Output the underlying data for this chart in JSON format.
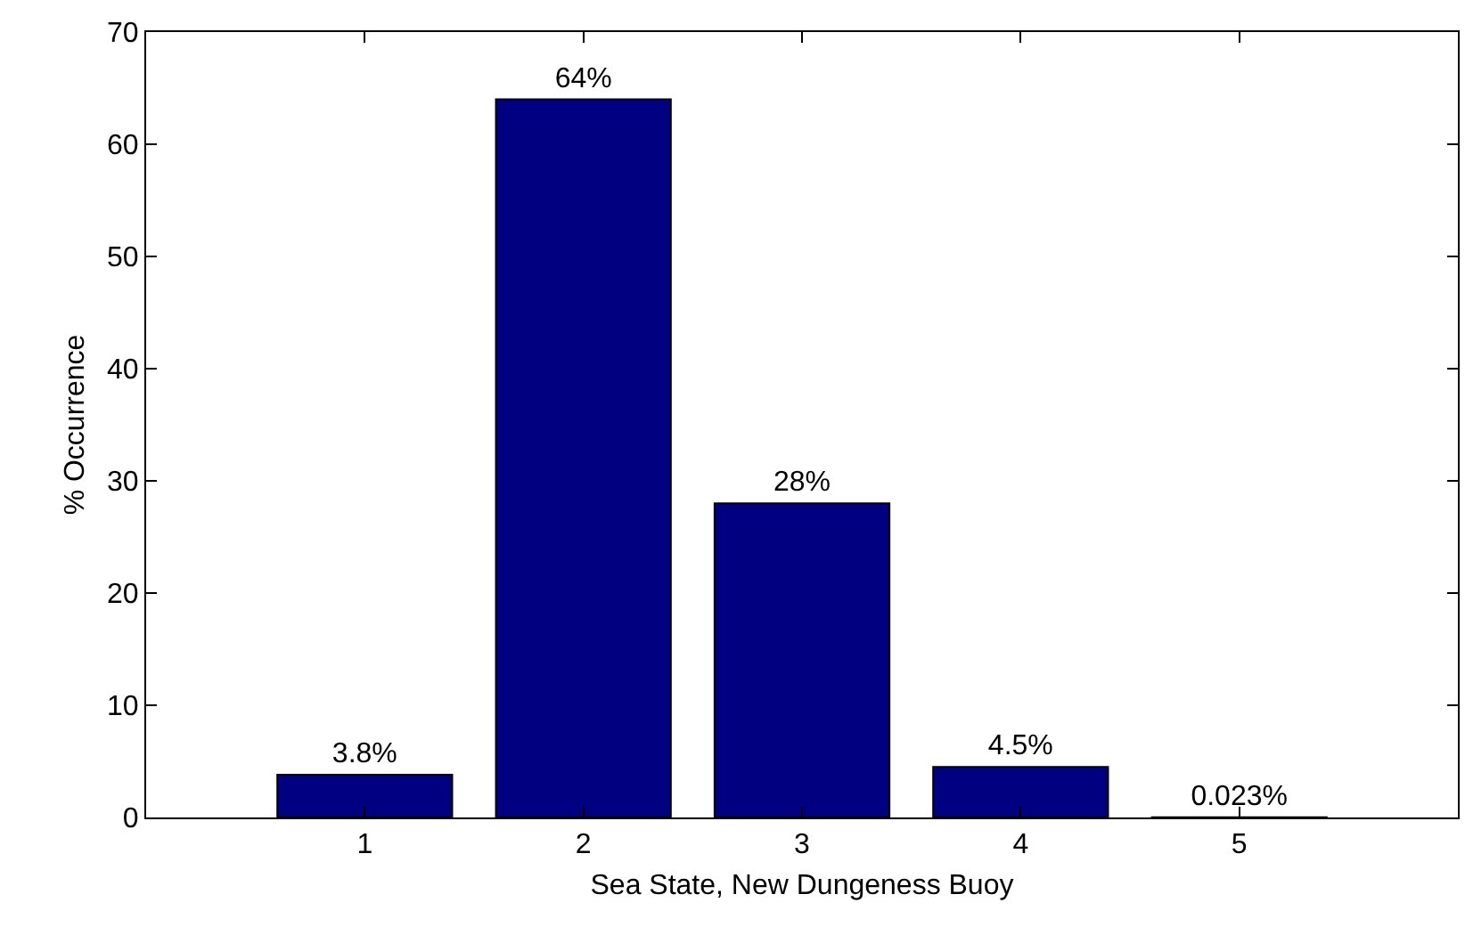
{
  "chart_data": {
    "type": "bar",
    "xlabel": "Sea State, New Dungeness Buoy",
    "ylabel": "% Occurrence",
    "x": [
      1,
      2,
      3,
      4,
      5
    ],
    "values": [
      3.8,
      64,
      28,
      4.5,
      0.023
    ],
    "value_labels": [
      "3.8%",
      "64%",
      "28%",
      "4.5%",
      "0.023%"
    ],
    "color": "#000080",
    "xlim": [
      0,
      6
    ],
    "xticks": [
      1,
      2,
      3,
      4,
      5
    ],
    "ylim": [
      0,
      70
    ],
    "yticks": [
      0,
      10,
      20,
      30,
      40,
      50,
      60,
      70
    ],
    "grid": false
  }
}
